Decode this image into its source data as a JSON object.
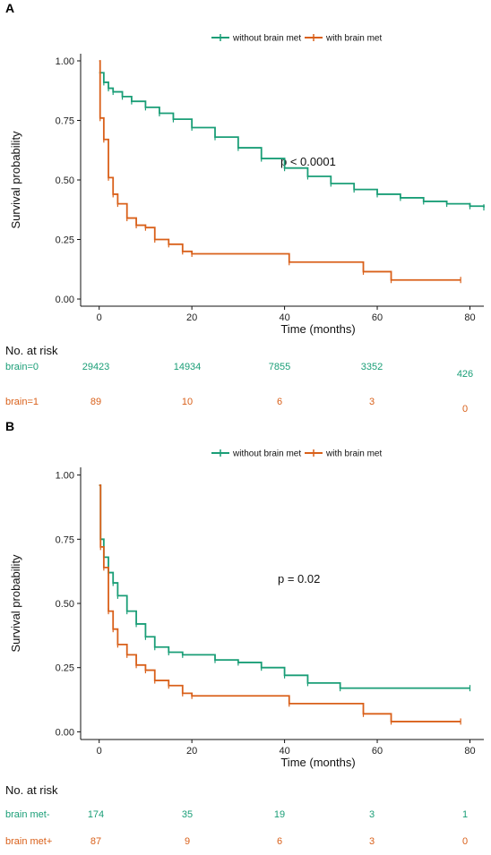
{
  "colors": {
    "green": "#1a9e77",
    "orange": "#d9601a"
  },
  "chart_data": [
    {
      "type": "line",
      "panel": "A",
      "ylabel": "Survival probability",
      "xlabel": "Time (months)",
      "xlim": [
        -4,
        83
      ],
      "ylim": [
        -0.03,
        1.03
      ],
      "x_ticks": [
        0,
        20,
        40,
        60,
        80
      ],
      "y_ticks": [
        "0.00",
        "0.25",
        "0.50",
        "0.75",
        "1.00"
      ],
      "legend": [
        "without brain met",
        "with brain met"
      ],
      "legend_position": "top",
      "annotation": "p < 0.0001",
      "series": [
        {
          "name": "without brain met",
          "color": "green",
          "points": [
            [
              0,
              0.95
            ],
            [
              1,
              0.91
            ],
            [
              2,
              0.885
            ],
            [
              3,
              0.87
            ],
            [
              5,
              0.85
            ],
            [
              7,
              0.83
            ],
            [
              10,
              0.805
            ],
            [
              13,
              0.78
            ],
            [
              16,
              0.755
            ],
            [
              20,
              0.72
            ],
            [
              25,
              0.68
            ],
            [
              30,
              0.635
            ],
            [
              35,
              0.59
            ],
            [
              40,
              0.55
            ],
            [
              45,
              0.515
            ],
            [
              50,
              0.485
            ],
            [
              55,
              0.46
            ],
            [
              60,
              0.44
            ],
            [
              65,
              0.425
            ],
            [
              70,
              0.41
            ],
            [
              75,
              0.4
            ],
            [
              80,
              0.39
            ],
            [
              83,
              0.385
            ]
          ]
        },
        {
          "name": "with brain met",
          "color": "orange",
          "points": [
            [
              0,
              1.0
            ],
            [
              0.2,
              0.76
            ],
            [
              1,
              0.67
            ],
            [
              2,
              0.51
            ],
            [
              3,
              0.44
            ],
            [
              4,
              0.4
            ],
            [
              6,
              0.34
            ],
            [
              8,
              0.31
            ],
            [
              10,
              0.3
            ],
            [
              12,
              0.25
            ],
            [
              15,
              0.23
            ],
            [
              18,
              0.2
            ],
            [
              20,
              0.19
            ],
            [
              41,
              0.155
            ],
            [
              57,
              0.115
            ],
            [
              63,
              0.08
            ],
            [
              78,
              0.08
            ]
          ]
        }
      ],
      "risk_table": {
        "title": "No. at risk",
        "rows": [
          {
            "label": "brain=0",
            "color": "green",
            "values": [
              "29423",
              "14934",
              "7855",
              "3352",
              "426"
            ]
          },
          {
            "label": "brain=1",
            "color": "orange",
            "values": [
              "89",
              "10",
              "6",
              "3",
              "0"
            ]
          }
        ]
      }
    },
    {
      "type": "line",
      "panel": "B",
      "ylabel": "Survival probability",
      "xlabel": "Time (months)",
      "xlim": [
        -4,
        83
      ],
      "ylim": [
        -0.03,
        1.03
      ],
      "x_ticks": [
        0,
        20,
        40,
        60,
        80
      ],
      "y_ticks": [
        "0.00",
        "0.25",
        "0.50",
        "0.75",
        "1.00"
      ],
      "legend": [
        "without brain met",
        "with brain met"
      ],
      "legend_position": "top",
      "annotation": "p = 0.02",
      "series": [
        {
          "name": "without brain met",
          "color": "green",
          "points": [
            [
              0,
              0.96
            ],
            [
              0.3,
              0.75
            ],
            [
              1,
              0.68
            ],
            [
              2,
              0.62
            ],
            [
              3,
              0.58
            ],
            [
              4,
              0.53
            ],
            [
              6,
              0.47
            ],
            [
              8,
              0.42
            ],
            [
              10,
              0.37
            ],
            [
              12,
              0.33
            ],
            [
              15,
              0.31
            ],
            [
              18,
              0.3
            ],
            [
              25,
              0.28
            ],
            [
              30,
              0.27
            ],
            [
              35,
              0.25
            ],
            [
              40,
              0.22
            ],
            [
              45,
              0.19
            ],
            [
              52,
              0.17
            ],
            [
              80,
              0.17
            ]
          ]
        },
        {
          "name": "with brain met",
          "color": "orange",
          "points": [
            [
              0,
              0.96
            ],
            [
              0.3,
              0.72
            ],
            [
              1,
              0.64
            ],
            [
              2,
              0.47
            ],
            [
              3,
              0.4
            ],
            [
              4,
              0.34
            ],
            [
              6,
              0.3
            ],
            [
              8,
              0.26
            ],
            [
              10,
              0.24
            ],
            [
              12,
              0.2
            ],
            [
              15,
              0.18
            ],
            [
              18,
              0.15
            ],
            [
              20,
              0.14
            ],
            [
              41,
              0.11
            ],
            [
              57,
              0.07
            ],
            [
              63,
              0.04
            ],
            [
              78,
              0.04
            ]
          ]
        }
      ],
      "risk_table": {
        "title": "No. at risk",
        "rows": [
          {
            "label": "brain met-",
            "color": "green",
            "values": [
              "174",
              "35",
              "19",
              "3",
              "1"
            ]
          },
          {
            "label": "brain met+",
            "color": "orange",
            "values": [
              "87",
              "9",
              "6",
              "3",
              "0"
            ]
          }
        ]
      }
    }
  ]
}
